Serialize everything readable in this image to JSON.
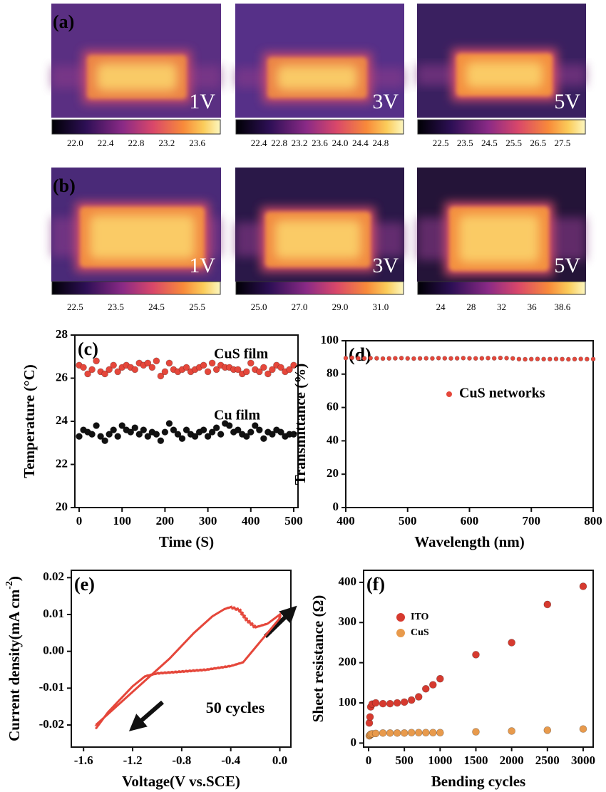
{
  "thermal": {
    "rows": [
      {
        "label": "(a)",
        "panels": [
          {
            "voltage": "1V",
            "colorbar_ticks": [
              "22.0",
              "22.4",
              "22.8",
              "23.2",
              "23.6"
            ]
          },
          {
            "voltage": "3V",
            "colorbar_ticks": [
              "22.4",
              "22.8",
              "23.2",
              "23.6",
              "24.0",
              "24.4",
              "24.8"
            ]
          },
          {
            "voltage": "5V",
            "colorbar_ticks": [
              "22.5",
              "23.5",
              "24.5",
              "25.5",
              "26.5",
              "27.5"
            ]
          }
        ]
      },
      {
        "label": "(b)",
        "panels": [
          {
            "voltage": "1V",
            "colorbar_ticks": [
              "22.5",
              "23.5",
              "24.5",
              "25.5"
            ]
          },
          {
            "voltage": "3V",
            "colorbar_ticks": [
              "25.0",
              "27.0",
              "29.0",
              "31.0"
            ]
          },
          {
            "voltage": "5V",
            "colorbar_ticks": [
              "24",
              "28",
              "32",
              "36",
              "38.6"
            ]
          }
        ]
      }
    ]
  },
  "chart_data": [
    {
      "type": "scatter",
      "panel_label": "(c)",
      "xlabel": "Time (S)",
      "ylabel": "Temperature (°C)",
      "xlim": [
        -10,
        510
      ],
      "ylim": [
        20,
        28
      ],
      "xticks": [
        0,
        100,
        200,
        300,
        400,
        500
      ],
      "yticks": [
        20,
        22,
        24,
        26,
        28
      ],
      "x": [
        0,
        10,
        20,
        30,
        40,
        50,
        60,
        70,
        80,
        90,
        100,
        110,
        120,
        130,
        140,
        150,
        160,
        170,
        180,
        190,
        200,
        210,
        220,
        230,
        240,
        250,
        260,
        270,
        280,
        290,
        300,
        310,
        320,
        330,
        340,
        350,
        360,
        370,
        380,
        390,
        400,
        410,
        420,
        430,
        440,
        450,
        460,
        470,
        480,
        490,
        500
      ],
      "series": [
        {
          "name": "CuS film",
          "color": "#e5473b",
          "values": [
            26.6,
            26.5,
            26.2,
            26.4,
            26.8,
            26.3,
            26.2,
            26.4,
            26.6,
            26.3,
            26.5,
            26.6,
            26.5,
            26.4,
            26.7,
            26.6,
            26.7,
            26.5,
            26.8,
            26.1,
            26.3,
            26.7,
            26.4,
            26.3,
            26.4,
            26.5,
            26.3,
            26.4,
            26.5,
            26.6,
            26.3,
            26.7,
            26.4,
            26.6,
            26.5,
            26.5,
            26.4,
            26.4,
            26.2,
            26.3,
            26.7,
            26.4,
            26.3,
            26.5,
            26.2,
            26.4,
            26.6,
            26.5,
            26.3,
            26.4,
            26.6
          ]
        },
        {
          "name": "Cu film",
          "color": "#111111",
          "values": [
            23.3,
            23.6,
            23.5,
            23.4,
            23.8,
            23.3,
            23.1,
            23.4,
            23.6,
            23.3,
            23.8,
            23.6,
            23.5,
            23.7,
            23.4,
            23.6,
            23.3,
            23.5,
            23.4,
            23.1,
            23.5,
            23.9,
            23.6,
            23.4,
            23.2,
            23.6,
            23.4,
            23.3,
            23.5,
            23.6,
            23.3,
            23.5,
            23.7,
            23.4,
            23.9,
            23.8,
            23.5,
            23.6,
            23.4,
            23.3,
            23.5,
            23.8,
            23.6,
            23.2,
            23.5,
            23.4,
            23.6,
            23.5,
            23.3,
            23.4,
            23.4
          ]
        }
      ]
    },
    {
      "type": "scatter",
      "panel_label": "(d)",
      "xlabel": "Wavelength (nm)",
      "ylabel": "Transmittance (%)",
      "xlim": [
        400,
        800
      ],
      "ylim": [
        0,
        100
      ],
      "xticks": [
        400,
        500,
        600,
        700,
        800
      ],
      "yticks": [
        0,
        20,
        40,
        60,
        80,
        100
      ],
      "x": [
        400,
        410,
        420,
        430,
        440,
        450,
        460,
        470,
        480,
        490,
        500,
        510,
        520,
        530,
        540,
        550,
        560,
        570,
        580,
        590,
        600,
        610,
        620,
        630,
        640,
        650,
        660,
        670,
        680,
        690,
        700,
        710,
        720,
        730,
        740,
        750,
        760,
        770,
        780,
        790,
        800
      ],
      "series": [
        {
          "name": "CuS networks",
          "color": "#e5473b",
          "values": [
            89.6,
            89.8,
            89.5,
            89.4,
            89.6,
            89.5,
            89.3,
            89.4,
            89.5,
            89.6,
            89.4,
            89.3,
            89.4,
            89.5,
            89.4,
            89.6,
            89.5,
            89.4,
            89.5,
            89.6,
            89.5,
            89.4,
            89.5,
            89.6,
            89.5,
            89.7,
            89.6,
            89.4,
            89.0,
            88.9,
            89.0,
            89.1,
            89.0,
            89.0,
            89.1,
            89.0,
            88.9,
            89.0,
            89.1,
            89.0,
            89.0
          ]
        }
      ]
    },
    {
      "type": "line",
      "panel_label": "(e)",
      "xlabel": "Voltage(V vs.SCE)",
      "ylabel": {
        "text": "Current density(mA cm",
        "superscript": "-2",
        "suffix": ")"
      },
      "annotation": "50 cycles",
      "xlim": [
        -1.7,
        0.09
      ],
      "ylim": [
        -0.026,
        0.022
      ],
      "xticks": [
        -1.6,
        -1.2,
        -0.8,
        -0.4,
        {
          "value": 0,
          "label": "0.0"
        }
      ],
      "yticks": [
        -0.02,
        -0.01,
        {
          "value": 0,
          "label": "0.00"
        },
        0.01,
        0.02
      ],
      "series": [
        {
          "color": "#e5473b",
          "x": [
            -1.5,
            -1.3,
            -1.1,
            -0.9,
            -0.7,
            -0.55,
            -0.45,
            -0.4,
            -0.33,
            -0.27,
            -0.2,
            -0.1,
            0.0,
            0.0,
            -0.1,
            -0.2,
            -0.3,
            -0.4,
            -0.6,
            -0.8,
            -1.0,
            -1.1,
            -1.2,
            -1.3,
            -1.4,
            -1.5
          ],
          "values": [
            -0.02,
            -0.014,
            -0.008,
            -0.002,
            0.005,
            0.0095,
            0.0115,
            0.012,
            0.0112,
            0.0085,
            0.0065,
            0.0075,
            0.01,
            0.009,
            0.005,
            0.001,
            -0.003,
            -0.004,
            -0.005,
            -0.0055,
            -0.006,
            -0.0068,
            -0.0095,
            -0.013,
            -0.0165,
            -0.021
          ]
        }
      ]
    },
    {
      "type": "scatter",
      "panel_label": "(f)",
      "xlabel": "Bending cycles",
      "ylabel": "Sheet resistance (Ω)",
      "xlim": [
        -70,
        3140
      ],
      "ylim": [
        -10,
        430
      ],
      "xticks": [
        0,
        500,
        1000,
        1500,
        2000,
        2500,
        3000
      ],
      "yticks": [
        0,
        100,
        200,
        300,
        400
      ],
      "x": [
        10,
        20,
        30,
        50,
        100,
        200,
        300,
        400,
        500,
        600,
        700,
        800,
        900,
        1000,
        1500,
        2000,
        2500,
        3000
      ],
      "series": [
        {
          "name": "ITO",
          "color": "#d63a2f",
          "values": [
            50,
            65,
            90,
            97,
            100,
            98,
            98,
            100,
            102,
            107,
            115,
            135,
            145,
            160,
            220,
            250,
            345,
            390
          ]
        },
        {
          "name": "CuS",
          "color": "#e89a4c",
          "values": [
            18,
            20,
            22,
            23,
            24,
            25,
            25,
            25,
            25,
            26,
            26,
            26,
            26,
            26,
            28,
            30,
            32,
            35
          ]
        }
      ]
    }
  ]
}
